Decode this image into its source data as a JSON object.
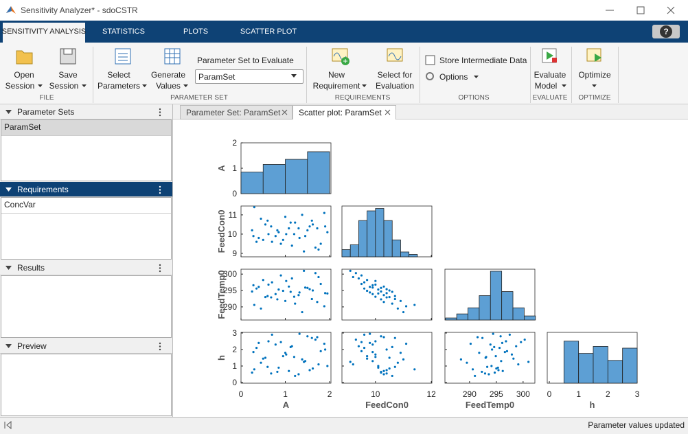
{
  "window": {
    "title": "Sensitivity Analyzer* - sdoCSTR"
  },
  "tabs": [
    "SENSITIVITY ANALYSIS",
    "STATISTICS",
    "PLOTS",
    "SCATTER PLOT"
  ],
  "help": "?",
  "toolstrip": {
    "file": {
      "label": "FILE",
      "open": [
        "Open",
        "Session"
      ],
      "save": [
        "Save",
        "Session"
      ]
    },
    "parameter_set": {
      "label": "PARAMETER SET",
      "select": [
        "Select",
        "Parameters"
      ],
      "generate": [
        "Generate",
        "Values"
      ],
      "evaluate_label": "Parameter Set to Evaluate",
      "dropdown": "ParamSet"
    },
    "requirements": {
      "label": "REQUIREMENTS",
      "new": [
        "New",
        "Requirement"
      ],
      "select": [
        "Select for",
        "Evaluation"
      ]
    },
    "options": {
      "label": "OPTIONS",
      "store": "Store Intermediate Data",
      "options": "Options"
    },
    "evaluate": {
      "label": "EVALUATE",
      "button": [
        "Evaluate",
        "Model"
      ]
    },
    "optimize": {
      "label": "OPTIMIZE",
      "button": "Optimize"
    }
  },
  "panels": [
    {
      "title": "Parameter Sets",
      "items": [
        "ParamSet"
      ]
    },
    {
      "title": "Requirements",
      "items": [
        "ConcVar"
      ]
    },
    {
      "title": "Results",
      "items": []
    },
    {
      "title": "Preview",
      "items": []
    }
  ],
  "documents": [
    "Parameter Set: ParamSet",
    "Scatter plot: ParamSet"
  ],
  "status": "Parameter values updated",
  "chart_data": {
    "type": "scatter_matrix",
    "color": "#0072bd",
    "hist_color": "#5d9fd4",
    "variables": [
      {
        "name": "A",
        "xlim": [
          0,
          2.03
        ],
        "ylim": [
          0,
          2
        ],
        "xticks": [
          0,
          1,
          2
        ],
        "yticks": [
          0,
          1,
          2
        ]
      },
      {
        "name": "FeedCon0",
        "xlim": [
          8.8,
          12.02
        ],
        "ylim": [
          8.82,
          11.46
        ],
        "xticks": [
          10,
          12
        ],
        "yticks": [
          9,
          10,
          11
        ]
      },
      {
        "name": "FeedTemp0",
        "xlim": [
          285.4,
          302.2
        ],
        "ylim": [
          286,
          301.5
        ],
        "xticks": [
          290,
          295,
          300
        ],
        "yticks": [
          290,
          295,
          300
        ]
      },
      {
        "name": "h",
        "xlim": [
          -0.07,
          3
        ],
        "ylim": [
          -0.04,
          3.04
        ],
        "xticks": [
          0,
          1,
          2,
          3
        ],
        "yticks": [
          0,
          1,
          2,
          3
        ]
      }
    ],
    "histograms": [
      {
        "bins": [
          0,
          0.5,
          1,
          1.5,
          2
        ],
        "counts": [
          0.85,
          1.15,
          1.35,
          1.65
        ],
        "ylim": [
          0,
          2
        ]
      },
      {
        "bins": [
          8.8,
          9.1,
          9.4,
          9.7,
          10.0,
          10.3,
          10.6,
          10.9,
          11.2,
          11.5
        ],
        "counts": [
          3,
          5,
          15,
          19,
          20,
          15,
          7,
          2,
          1
        ],
        "ylim": [
          0,
          21
        ]
      },
      {
        "bins": [
          285.5,
          287.6,
          289.7,
          291.8,
          293.9,
          296,
          298.1,
          300.2,
          302.3
        ],
        "counts": [
          1,
          3,
          6,
          12,
          24,
          14,
          6,
          2
        ],
        "ylim": [
          0,
          25
        ]
      },
      {
        "bins": [
          0.5,
          1.0,
          1.5,
          2.0,
          2.5,
          3.0
        ],
        "counts": [
          24,
          17,
          21,
          13,
          20
        ],
        "ylim": [
          0,
          29
        ]
      }
    ],
    "samples": [
      [
        0.25,
        0.4,
        0.55,
        0.7,
        0.85,
        1.0,
        1.15,
        1.3,
        1.45,
        1.6,
        1.75,
        1.9,
        0.3,
        0.62,
        0.95,
        1.22,
        1.5,
        1.8,
        0.45,
        0.78,
        1.08,
        1.38,
        1.68,
        1.95,
        0.35,
        0.68,
        1.02,
        1.32,
        1.62,
        1.88,
        0.5,
        0.82,
        1.12,
        1.42,
        1.72,
        0.28,
        0.6,
        0.9,
        1.2,
        1.55
      ],
      [
        10.2,
        9.8,
        10.5,
        9.6,
        10.1,
        10.9,
        9.4,
        10.3,
        9.9,
        10.7,
        9.2,
        10.4,
        11.4,
        10.0,
        9.7,
        10.6,
        10.2,
        9.5,
        10.8,
        9.9,
        10.3,
        11.0,
        9.3,
        10.1,
        9.6,
        10.4,
        10.0,
        9.8,
        10.5,
        11.1,
        9.7,
        10.2,
        10.6,
        9.1,
        10.3,
        9.9,
        10.7,
        9.5,
        10.0,
        10.4
      ],
      [
        294.7,
        296.1,
        293.0,
        297.5,
        295.3,
        291.8,
        298.7,
        293.6,
        295.9,
        292.4,
        299.1,
        294.2,
        290.6,
        296.8,
        294.9,
        291.0,
        295.8,
        297.0,
        289.5,
        293.9,
        296.2,
        288.4,
        300.3,
        294.1,
        295.6,
        292.9,
        297.9,
        294.4,
        295.0,
        290.2,
        298.2,
        292.3,
        294.6,
        301.0,
        291.5,
        296.6,
        293.3,
        299.6,
        293.1,
        295.4
      ],
      [
        0.6,
        2.4,
        1.5,
        2.9,
        0.9,
        1.8,
        2.2,
        0.5,
        1.3,
        2.7,
        1.1,
        2.0,
        0.8,
        2.5,
        1.6,
        0.4,
        2.8,
        1.9,
        1.2,
        2.3,
        0.7,
        1.4,
        2.6,
        1.0,
        2.1,
        0.55,
        1.7,
        2.95,
        0.85,
        2.35,
        1.45,
        0.65,
        2.15,
        1.25,
        2.75,
        1.85,
        0.95,
        2.45,
        1.55,
        0.75
      ]
    ]
  }
}
